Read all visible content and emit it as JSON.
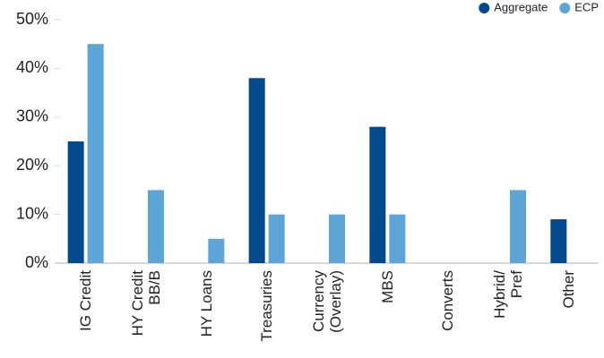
{
  "chart_data": {
    "type": "bar",
    "categories": [
      "IG Credit",
      "HY Credit\nBB/B",
      "HY Loans",
      "Treasuries",
      "Currency\n(Overlay)",
      "MBS",
      "Converts",
      "Hybrid/\nPref",
      "Other"
    ],
    "series": [
      {
        "name": "Aggregate",
        "color": "#034a8c",
        "values": [
          25,
          null,
          null,
          38,
          null,
          28,
          null,
          null,
          9
        ]
      },
      {
        "name": "ECP",
        "color": "#5ca5d6",
        "values": [
          45,
          15,
          5,
          10,
          10,
          10,
          null,
          15,
          null
        ]
      }
    ],
    "ylim": [
      0,
      50
    ],
    "yticks": [
      {
        "value": 0,
        "label": "0%"
      },
      {
        "value": 10,
        "label": "10%"
      },
      {
        "value": 20,
        "label": "20%"
      },
      {
        "value": 30,
        "label": "30%"
      },
      {
        "value": 40,
        "label": "40%"
      },
      {
        "value": 50,
        "label": "50%"
      }
    ],
    "grid": false,
    "legend": "top-right"
  }
}
